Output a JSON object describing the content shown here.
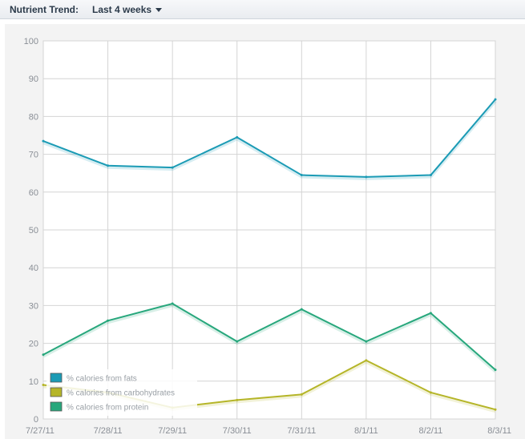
{
  "header": {
    "label": "Nutrient Trend:",
    "range": "Last 4 weeks"
  },
  "colors": {
    "fats": "#1b9bb5",
    "carbohydrates": "#b5b528",
    "protein": "#27a77c",
    "grid": "#d4d4d4"
  },
  "chart_data": {
    "type": "line",
    "title": "",
    "xlabel": "",
    "ylabel": "",
    "ylim": [
      0,
      100
    ],
    "yticks": [
      0,
      10,
      20,
      30,
      40,
      50,
      60,
      70,
      80,
      90,
      100
    ],
    "categories": [
      "7/27/11",
      "7/28/11",
      "7/29/11",
      "7/30/11",
      "7/31/11",
      "8/1/11",
      "8/2/11",
      "8/3/11"
    ],
    "grid": true,
    "legend_position": "bottom-left",
    "series": [
      {
        "name": "% calories from fats",
        "color_key": "fats",
        "values": [
          73.5,
          67,
          66.5,
          74.5,
          64.5,
          64,
          64.5,
          84.5
        ]
      },
      {
        "name": "% calories from carbohydrates",
        "color_key": "carbohydrates",
        "values": [
          9,
          7,
          3,
          5,
          6.5,
          15.5,
          7,
          2.5
        ]
      },
      {
        "name": "% calories from protein",
        "color_key": "protein",
        "values": [
          17,
          26,
          30.5,
          20.5,
          29,
          20.5,
          28,
          13
        ]
      }
    ]
  }
}
